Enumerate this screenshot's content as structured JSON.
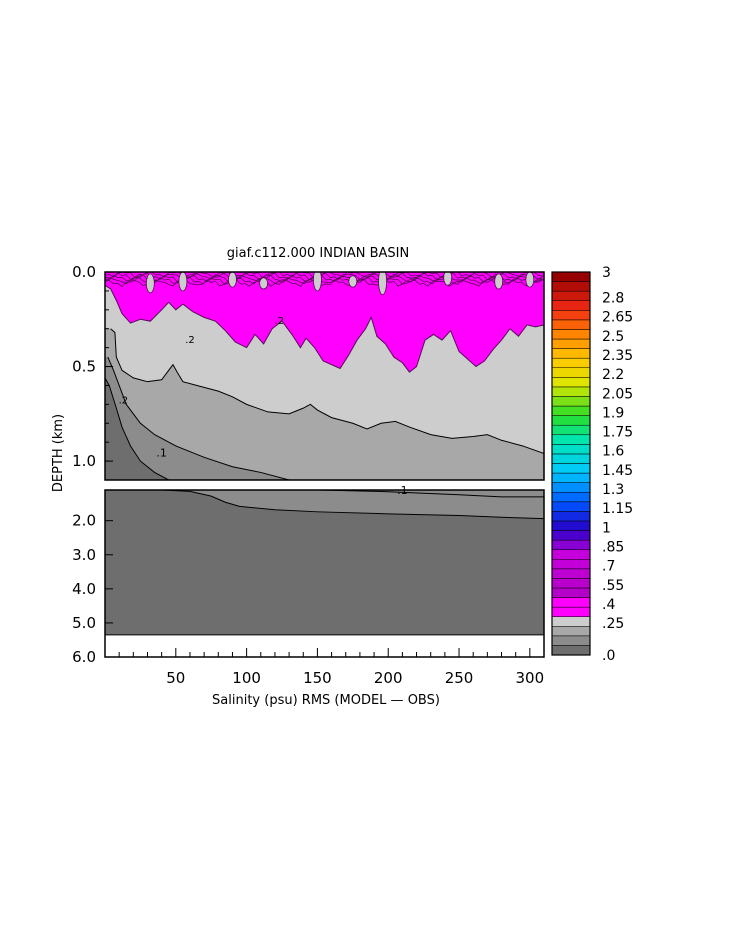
{
  "chart_data": {
    "type": "heatmap",
    "title": "giaf.c112.000 INDIAN BASIN",
    "xlabel": "Salinity (psu) RMS (MODEL — OBS)",
    "ylabel": "DEPTH (km)",
    "xlim": [
      0,
      310
    ],
    "x_ticks": [
      "50",
      "100",
      "150",
      "200",
      "250",
      "300"
    ],
    "upper_panel": {
      "ylim": [
        0.0,
        1.1
      ],
      "y_ticks": [
        "0.0",
        "0.5",
        "1.0"
      ]
    },
    "lower_panel": {
      "ylim": [
        1.1,
        6.0
      ],
      "y_ticks": [
        "2.0",
        "3.0",
        "4.0",
        "5.0",
        "6.0"
      ],
      "data_bottom": 5.35
    },
    "contour_labels": [
      ".1",
      ".1",
      ".2",
      ".2",
      ".2"
    ],
    "colorbar": {
      "labels": [
        "3",
        "2.8",
        "2.65",
        "2.5",
        "2.35",
        "2.2",
        "2.05",
        "1.9",
        "1.75",
        "1.6",
        "1.45",
        "1.3",
        "1.15",
        "1",
        ".85",
        ".7",
        ".55",
        ".4",
        ".25",
        ".0"
      ],
      "label_values": [
        3.0,
        2.8,
        2.65,
        2.5,
        2.35,
        2.2,
        2.05,
        1.9,
        1.75,
        1.6,
        1.45,
        1.3,
        1.15,
        1.0,
        0.85,
        0.7,
        0.55,
        0.4,
        0.25,
        0.0
      ],
      "range": [
        0.0,
        3.0
      ],
      "levels": 40,
      "low_colors": [
        "#6e6e6e",
        "#8c8c8c",
        "#a8a8a8",
        "#cdcdcd",
        "#ff00ff"
      ]
    },
    "regions": {
      "band_lt_0_1": "#6e6e6e",
      "band_0_1_0_15": "#8c8c8c",
      "band_0_15_0_2": "#a8a8a8",
      "band_0_2_0_25": "#cdcdcd",
      "band_0_25_0_3": "#ff00ff"
    }
  }
}
